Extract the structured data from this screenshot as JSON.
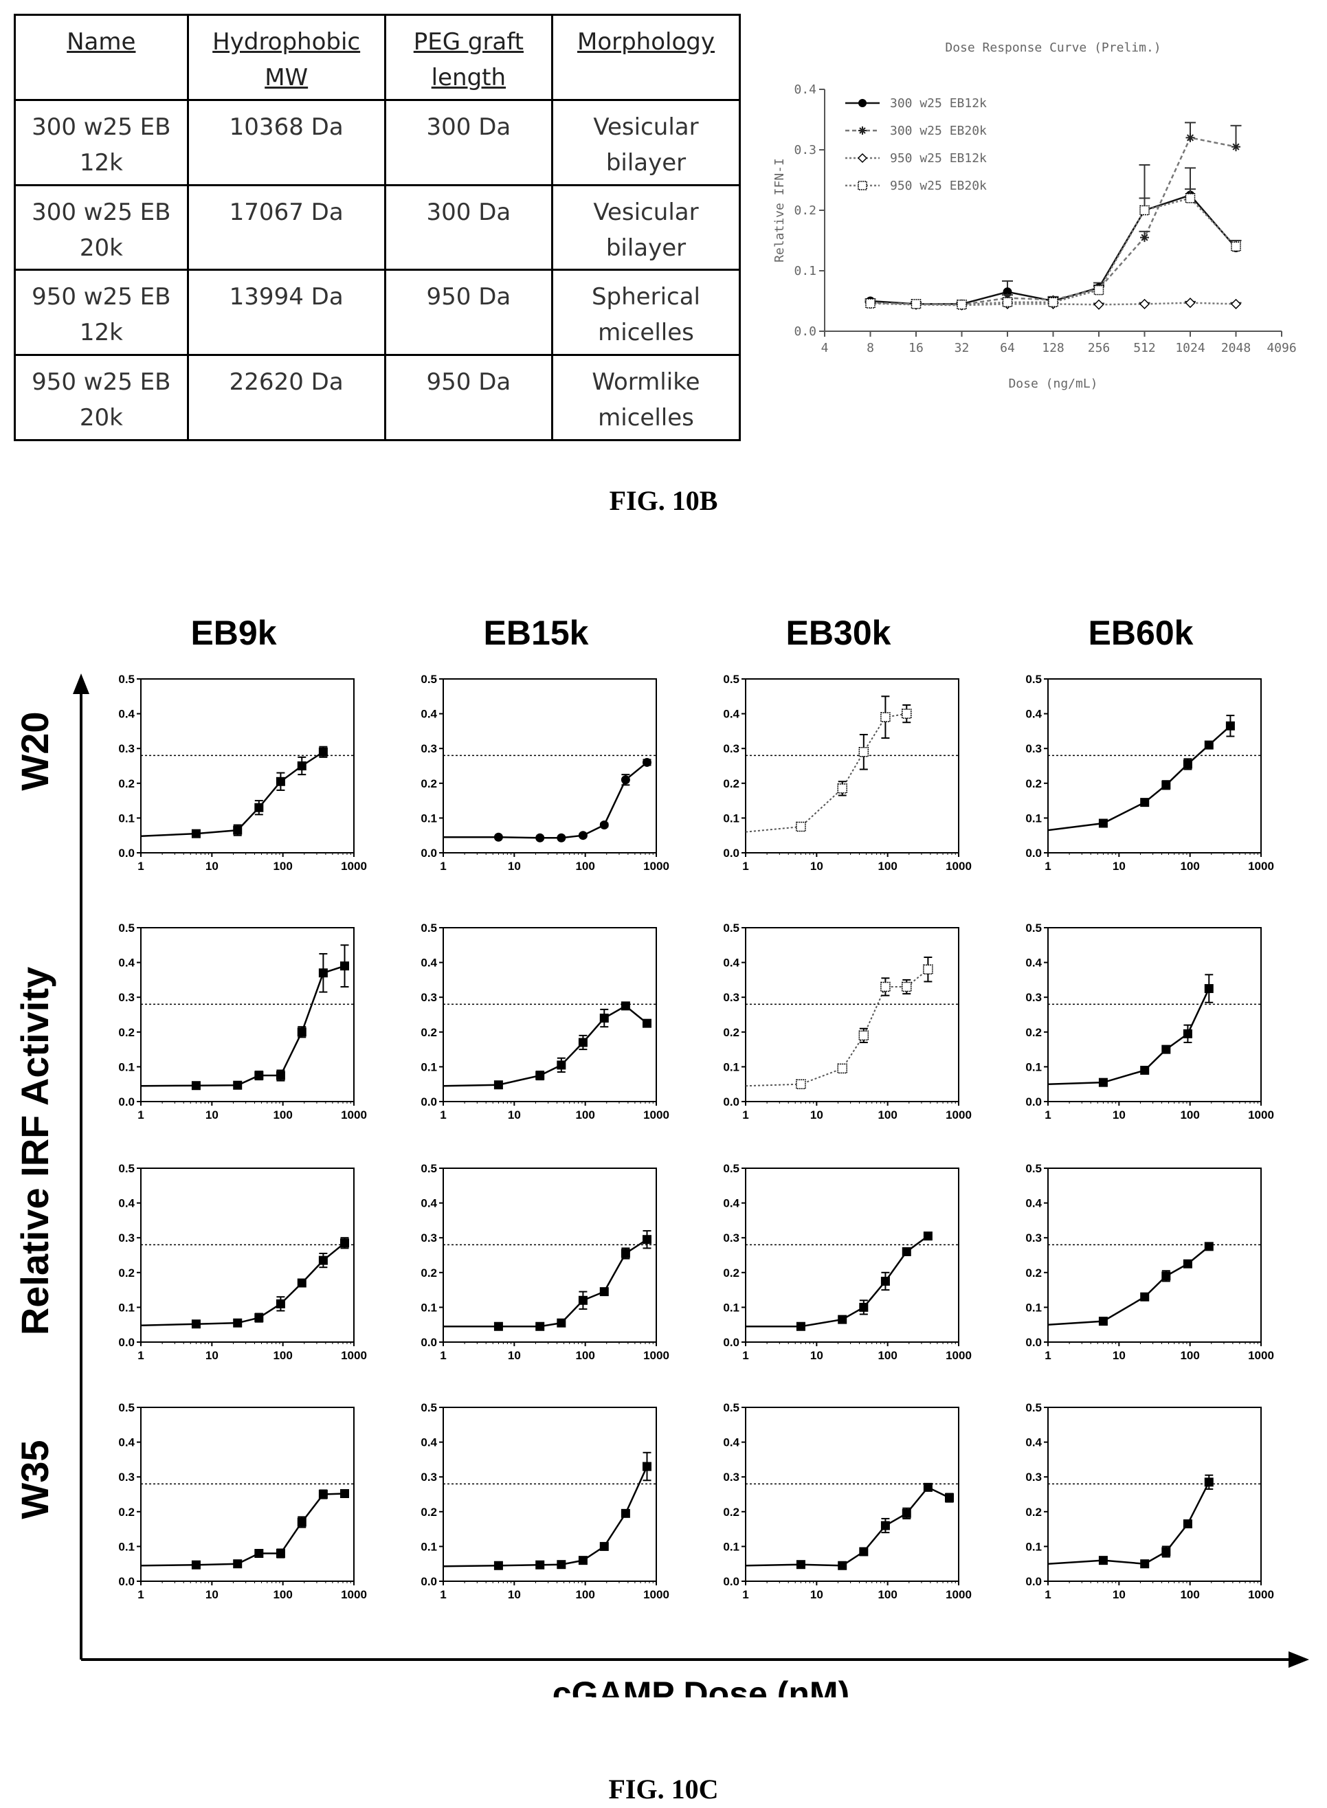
{
  "table": {
    "headers": [
      "Name",
      "Hydrophobic MW",
      "PEG graft length",
      "Morphology"
    ],
    "rows": [
      [
        "300 w25 EB 12k",
        "10368 Da",
        "300 Da",
        "Vesicular bilayer"
      ],
      [
        "300 w25 EB 20k",
        "17067 Da",
        "300 Da",
        "Vesicular bilayer"
      ],
      [
        "950 w25 EB 12k",
        "13994 Da",
        "950 Da",
        "Spherical micelles"
      ],
      [
        "950 w25 EB 20k",
        "22620 Da",
        "950 Da",
        "Wormlike micelles"
      ]
    ]
  },
  "captions": {
    "fig_b": "FIG. 10B",
    "fig_c": "FIG. 10C"
  },
  "chart_data": [
    {
      "type": "line",
      "title": "Dose Response Curve (Prelim.)",
      "xlabel": "Dose (ng/mL)",
      "ylabel": "Relative IFN-I",
      "x_scale": "log2",
      "x_ticks": [
        "4",
        "8",
        "16",
        "32",
        "64",
        "128",
        "256",
        "512",
        "1024",
        "2048",
        "4096"
      ],
      "y_ticks": [
        "0.0",
        "0.1",
        "0.2",
        "0.3",
        "0.4"
      ],
      "ylim": [
        0,
        0.4
      ],
      "legend_position": "top-left",
      "x": [
        8,
        16,
        32,
        64,
        128,
        256,
        512,
        1024,
        2048
      ],
      "series": [
        {
          "name": "300 w25 EB12k",
          "values": [
            0.05,
            0.045,
            0.045,
            0.065,
            0.05,
            0.072,
            0.2,
            0.225,
            0.138
          ],
          "errors": [
            0.003,
            0.003,
            0.003,
            0.018,
            0.005,
            0.008,
            0.075,
            0.045,
            0.012
          ]
        },
        {
          "name": "300 w25 EB20k",
          "values": [
            0.047,
            0.045,
            0.044,
            0.055,
            0.052,
            0.07,
            0.155,
            0.32,
            0.305
          ],
          "errors": [
            0.003,
            0.003,
            0.003,
            0.005,
            0.005,
            0.006,
            0.01,
            0.025,
            0.035
          ]
        },
        {
          "name": "950 w25 EB12k",
          "values": [
            0.046,
            0.044,
            0.043,
            0.045,
            0.045,
            0.044,
            0.045,
            0.047,
            0.045
          ],
          "errors": [
            0.002,
            0.002,
            0.002,
            0.002,
            0.002,
            0.002,
            0.002,
            0.002,
            0.002
          ]
        },
        {
          "name": "950 w25 EB20k",
          "values": [
            0.046,
            0.045,
            0.044,
            0.048,
            0.048,
            0.068,
            0.2,
            0.22,
            0.14
          ],
          "errors": [
            0.002,
            0.002,
            0.002,
            0.005,
            0.005,
            0.006,
            0.02,
            0.015,
            0.01
          ]
        }
      ]
    },
    {
      "type": "line",
      "grid": "4x4 small multiples",
      "column_titles": [
        "EB9k",
        "EB15k",
        "EB30k",
        "EB60k"
      ],
      "row_titles": [
        "W20",
        "",
        "",
        "W35"
      ],
      "xlabel": "cGAMP Dose (nM)",
      "ylabel": "Relative IRF Activity",
      "x_scale": "log10",
      "xlim": [
        1,
        1000
      ],
      "ylim": [
        0,
        0.5
      ],
      "x_ticks": [
        "1",
        "10",
        "100",
        "1000"
      ],
      "y_ticks": [
        "0.0",
        "0.1",
        "0.2",
        "0.3",
        "0.4",
        "0.5"
      ],
      "reference_line_y": 0.28,
      "panels": [
        {
          "row": 0,
          "col": 0,
          "marker": "square",
          "style": "solid",
          "x": [
            1,
            6,
            23,
            46,
            93,
            185,
            370
          ],
          "values": [
            0.048,
            0.055,
            0.065,
            0.13,
            0.205,
            0.25,
            0.29
          ],
          "errors": [
            0,
            0.005,
            0.015,
            0.02,
            0.025,
            0.025,
            0.015
          ]
        },
        {
          "row": 0,
          "col": 1,
          "marker": "circle",
          "style": "solid",
          "x": [
            1,
            6,
            23,
            46,
            93,
            185,
            370,
            740
          ],
          "values": [
            0.045,
            0.045,
            0.043,
            0.043,
            0.05,
            0.08,
            0.21,
            0.26
          ],
          "errors": [
            0,
            0.003,
            0.003,
            0.003,
            0.004,
            0.005,
            0.015,
            0.008
          ]
        },
        {
          "row": 0,
          "col": 2,
          "marker": "square",
          "style": "dotted",
          "x": [
            1,
            6,
            23,
            46,
            93,
            185
          ],
          "values": [
            0.06,
            0.075,
            0.185,
            0.29,
            0.39,
            0.4
          ],
          "errors": [
            0,
            0.005,
            0.02,
            0.05,
            0.06,
            0.025
          ]
        },
        {
          "row": 0,
          "col": 3,
          "marker": "square",
          "style": "solid",
          "x": [
            1,
            6,
            23,
            46,
            93,
            185,
            370
          ],
          "values": [
            0.065,
            0.085,
            0.145,
            0.195,
            0.255,
            0.31,
            0.365
          ],
          "errors": [
            0,
            0.005,
            0.008,
            0.012,
            0.015,
            0.01,
            0.03
          ]
        },
        {
          "row": 1,
          "col": 0,
          "marker": "square",
          "style": "solid",
          "x": [
            1,
            6,
            23,
            46,
            93,
            185,
            370,
            740
          ],
          "values": [
            0.045,
            0.046,
            0.047,
            0.075,
            0.075,
            0.2,
            0.37,
            0.39
          ],
          "errors": [
            0,
            0.004,
            0.005,
            0.012,
            0.015,
            0.015,
            0.055,
            0.06
          ]
        },
        {
          "row": 1,
          "col": 1,
          "marker": "square",
          "style": "solid",
          "x": [
            1,
            6,
            23,
            46,
            93,
            185,
            370,
            740
          ],
          "values": [
            0.045,
            0.048,
            0.075,
            0.105,
            0.17,
            0.24,
            0.275,
            0.225
          ],
          "errors": [
            0,
            0.004,
            0.012,
            0.02,
            0.02,
            0.025,
            0.005,
            0.005
          ]
        },
        {
          "row": 1,
          "col": 2,
          "marker": "square",
          "style": "dotted",
          "x": [
            1,
            6,
            23,
            46,
            93,
            185,
            370
          ],
          "values": [
            0.045,
            0.05,
            0.095,
            0.19,
            0.33,
            0.33,
            0.38
          ],
          "errors": [
            0,
            0.004,
            0.01,
            0.02,
            0.025,
            0.02,
            0.035
          ]
        },
        {
          "row": 1,
          "col": 3,
          "marker": "square",
          "style": "solid",
          "x": [
            1,
            6,
            23,
            46,
            93,
            185
          ],
          "values": [
            0.05,
            0.055,
            0.09,
            0.15,
            0.195,
            0.325
          ],
          "errors": [
            0,
            0.004,
            0.005,
            0.01,
            0.025,
            0.04
          ]
        },
        {
          "row": 2,
          "col": 0,
          "marker": "square",
          "style": "solid",
          "x": [
            1,
            6,
            23,
            46,
            93,
            185,
            370,
            740
          ],
          "values": [
            0.048,
            0.052,
            0.055,
            0.07,
            0.11,
            0.17,
            0.235,
            0.285
          ],
          "errors": [
            0,
            0.004,
            0.005,
            0.012,
            0.02,
            0.008,
            0.02,
            0.015
          ]
        },
        {
          "row": 2,
          "col": 1,
          "marker": "square",
          "style": "solid",
          "x": [
            1,
            6,
            23,
            46,
            93,
            185,
            370,
            740
          ],
          "values": [
            0.045,
            0.045,
            0.045,
            0.055,
            0.12,
            0.145,
            0.255,
            0.295
          ],
          "errors": [
            0,
            0.004,
            0.004,
            0.005,
            0.025,
            0.008,
            0.015,
            0.025
          ]
        },
        {
          "row": 2,
          "col": 2,
          "marker": "square",
          "style": "solid",
          "x": [
            1,
            6,
            23,
            46,
            93,
            185,
            370
          ],
          "values": [
            0.045,
            0.045,
            0.065,
            0.1,
            0.175,
            0.26,
            0.305
          ],
          "errors": [
            0,
            0.004,
            0.005,
            0.02,
            0.025,
            0.008,
            0.008
          ]
        },
        {
          "row": 2,
          "col": 3,
          "marker": "square",
          "style": "solid",
          "x": [
            1,
            6,
            23,
            46,
            93,
            185
          ],
          "values": [
            0.05,
            0.06,
            0.13,
            0.19,
            0.225,
            0.275
          ],
          "errors": [
            0,
            0.004,
            0.01,
            0.015,
            0.008,
            0.006
          ]
        },
        {
          "row": 3,
          "col": 0,
          "marker": "square",
          "style": "solid",
          "x": [
            1,
            6,
            23,
            46,
            93,
            185,
            370,
            740
          ],
          "values": [
            0.045,
            0.047,
            0.05,
            0.08,
            0.08,
            0.17,
            0.25,
            0.252
          ],
          "errors": [
            0,
            0.004,
            0.004,
            0.008,
            0.012,
            0.015,
            0.012,
            0.008
          ]
        },
        {
          "row": 3,
          "col": 1,
          "marker": "square",
          "style": "solid",
          "x": [
            1,
            6,
            23,
            46,
            93,
            185,
            370,
            740
          ],
          "values": [
            0.043,
            0.045,
            0.047,
            0.048,
            0.06,
            0.1,
            0.195,
            0.33
          ],
          "errors": [
            0,
            0.003,
            0.003,
            0.004,
            0.005,
            0.008,
            0.008,
            0.04
          ]
        },
        {
          "row": 3,
          "col": 2,
          "marker": "square",
          "style": "solid",
          "x": [
            1,
            6,
            23,
            46,
            93,
            185,
            370,
            740
          ],
          "values": [
            0.045,
            0.048,
            0.045,
            0.085,
            0.16,
            0.195,
            0.27,
            0.24
          ],
          "errors": [
            0,
            0.004,
            0.004,
            0.01,
            0.02,
            0.015,
            0.008,
            0.012
          ]
        },
        {
          "row": 3,
          "col": 3,
          "marker": "square",
          "style": "solid",
          "x": [
            1,
            6,
            23,
            46,
            93,
            185
          ],
          "values": [
            0.05,
            0.06,
            0.05,
            0.085,
            0.165,
            0.285
          ],
          "errors": [
            0,
            0.006,
            0.005,
            0.015,
            0.008,
            0.02
          ]
        }
      ]
    }
  ]
}
